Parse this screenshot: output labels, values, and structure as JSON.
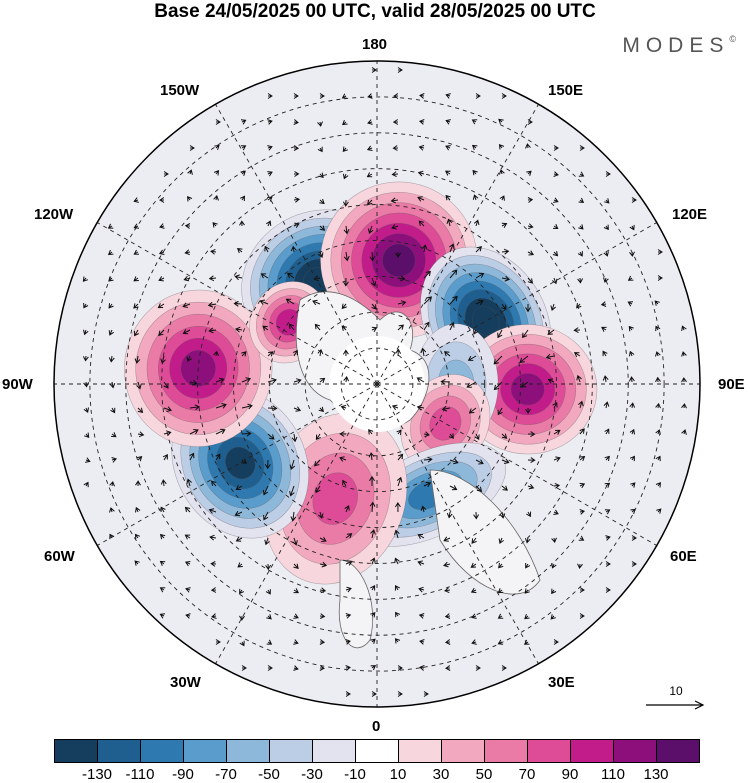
{
  "title": "Base 24/05/2025 00 UTC, valid 28/05/2025 00 UTC",
  "brand": "MODES",
  "brand_mark": "©",
  "longitude_labels": {
    "top": "180",
    "bottom": "0",
    "left": "90W",
    "right": "90E",
    "upper_left_1": "150W",
    "upper_left_2": "120W",
    "upper_right_1": "150E",
    "upper_right_2": "120E",
    "lower_left_1": "60W",
    "lower_left_2": "30W",
    "lower_right_1": "60E",
    "lower_right_2": "30E"
  },
  "reference_vector": {
    "label": "10"
  },
  "colorbar": {
    "ticks": [
      "-130",
      "-110",
      "-90",
      "-70",
      "-50",
      "-30",
      "-10",
      "10",
      "30",
      "50",
      "70",
      "90",
      "110",
      "130"
    ],
    "colors": [
      "#143d5e",
      "#1f5f8f",
      "#2e79b0",
      "#5a9ccb",
      "#8eb8da",
      "#bccde6",
      "#e3e2ef",
      "#ffffff",
      "#f8d6dd",
      "#f2a9bf",
      "#ea7aa6",
      "#de4c97",
      "#c21c8a",
      "#8c0f7c",
      "#5c0e6b"
    ]
  },
  "map_anomalies": [
    {
      "lon": -150,
      "lat": 57,
      "value": -140,
      "rx": 0.16,
      "ry": 0.14
    },
    {
      "lon": 170,
      "lat": 55,
      "value": 125,
      "rx": 0.16,
      "ry": 0.16
    },
    {
      "lon": 120,
      "lat": 55,
      "value": -140,
      "rx": 0.16,
      "ry": 0.12
    },
    {
      "lon": 88,
      "lat": 48,
      "value": 110,
      "rx": 0.13,
      "ry": 0.14
    },
    {
      "lon": 90,
      "lat": 68,
      "value": -45,
      "rx": 0.12,
      "ry": 0.08
    },
    {
      "lon": 60,
      "lat": 68,
      "value": 55,
      "rx": 0.1,
      "ry": 0.08
    },
    {
      "lon": 25,
      "lat": 56,
      "value": -85,
      "rx": 0.17,
      "ry": 0.08
    },
    {
      "lon": -20,
      "lat": 56,
      "value": 55,
      "rx": 0.14,
      "ry": 0.18
    },
    {
      "lon": -60,
      "lat": 46,
      "value": -130,
      "rx": 0.16,
      "ry": 0.13
    },
    {
      "lon": -95,
      "lat": 40,
      "value": 100,
      "rx": 0.16,
      "ry": 0.15
    },
    {
      "lon": -125,
      "lat": 60,
      "value": 80,
      "rx": 0.08,
      "ry": 0.07
    }
  ]
}
